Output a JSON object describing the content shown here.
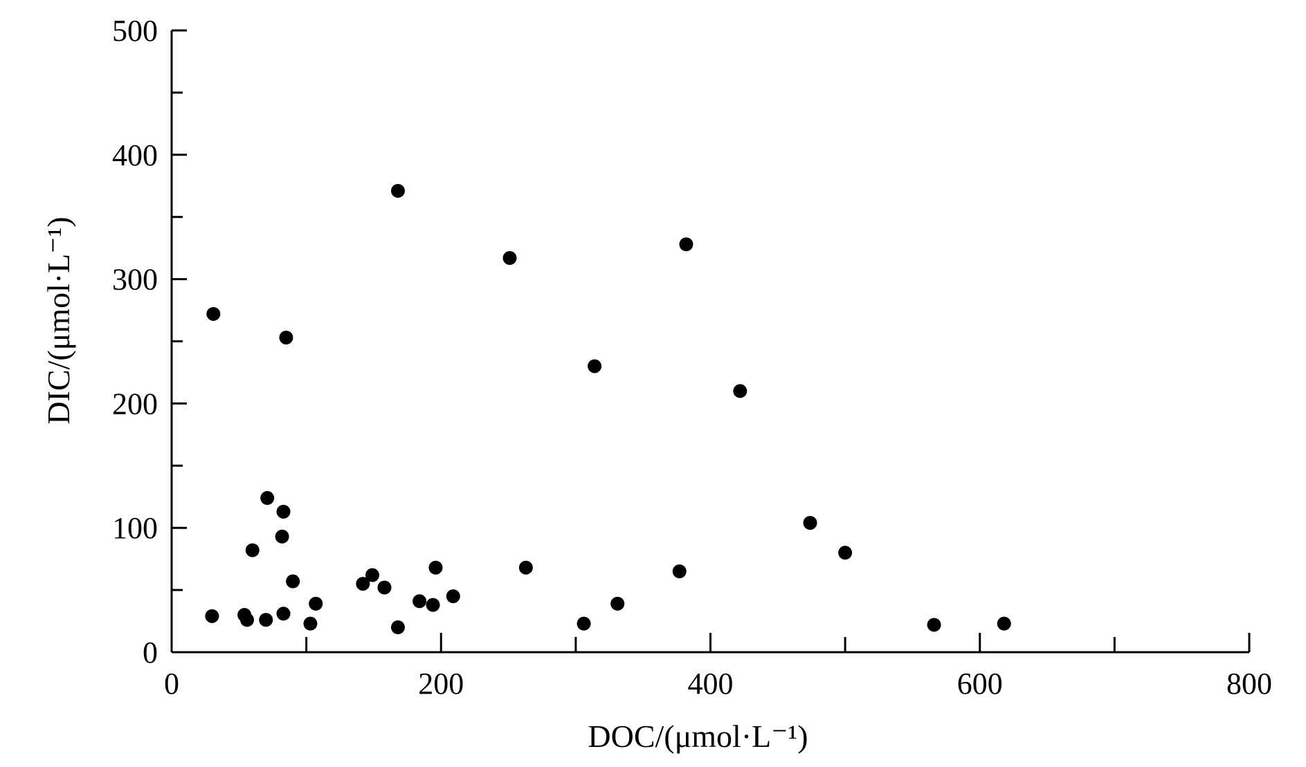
{
  "chart_data": {
    "type": "scatter",
    "title": "",
    "xlabel": "DOC/(μmol·L⁻¹)",
    "ylabel": "DIC/(μmol·L⁻¹)",
    "xlim": [
      0,
      800
    ],
    "ylim": [
      0,
      500
    ],
    "xticks": [
      0,
      200,
      400,
      600,
      800
    ],
    "xticks_minor": [
      100,
      300,
      500,
      700
    ],
    "yticks": [
      0,
      100,
      200,
      300,
      400,
      500
    ],
    "yticks_minor": [
      50,
      150,
      250,
      350,
      450
    ],
    "grid": false,
    "legend": "none",
    "marker_color": "#000000",
    "points": [
      {
        "x": 30,
        "y": 29
      },
      {
        "x": 31,
        "y": 272
      },
      {
        "x": 54,
        "y": 30
      },
      {
        "x": 56,
        "y": 26
      },
      {
        "x": 60,
        "y": 82
      },
      {
        "x": 70,
        "y": 26
      },
      {
        "x": 71,
        "y": 124
      },
      {
        "x": 82,
        "y": 93
      },
      {
        "x": 83,
        "y": 113
      },
      {
        "x": 83,
        "y": 31
      },
      {
        "x": 85,
        "y": 253
      },
      {
        "x": 90,
        "y": 57
      },
      {
        "x": 103,
        "y": 23
      },
      {
        "x": 107,
        "y": 39
      },
      {
        "x": 142,
        "y": 55
      },
      {
        "x": 149,
        "y": 62
      },
      {
        "x": 158,
        "y": 52
      },
      {
        "x": 168,
        "y": 20
      },
      {
        "x": 168,
        "y": 371
      },
      {
        "x": 184,
        "y": 41
      },
      {
        "x": 194,
        "y": 38
      },
      {
        "x": 196,
        "y": 68
      },
      {
        "x": 209,
        "y": 45
      },
      {
        "x": 251,
        "y": 317
      },
      {
        "x": 263,
        "y": 68
      },
      {
        "x": 306,
        "y": 23
      },
      {
        "x": 314,
        "y": 230
      },
      {
        "x": 331,
        "y": 39
      },
      {
        "x": 377,
        "y": 65
      },
      {
        "x": 382,
        "y": 328
      },
      {
        "x": 422,
        "y": 210
      },
      {
        "x": 474,
        "y": 104
      },
      {
        "x": 500,
        "y": 80
      },
      {
        "x": 566,
        "y": 22
      },
      {
        "x": 618,
        "y": 23
      }
    ]
  }
}
